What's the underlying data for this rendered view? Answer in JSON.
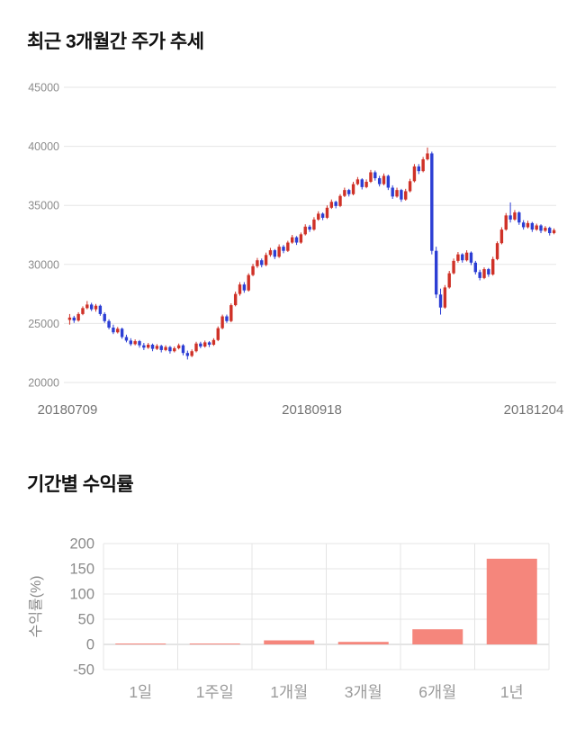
{
  "chart_data": [
    {
      "type": "candlestick",
      "title": "최근 3개월간 주가 추세",
      "x_labels": [
        "20180709",
        "20180918",
        "20181204"
      ],
      "ylim": [
        20000,
        45000
      ],
      "y_ticks": [
        20000,
        25000,
        30000,
        35000,
        40000,
        45000
      ],
      "grid": true,
      "up_color": "#cf3127",
      "down_color": "#2c3ed4",
      "grid_color": "#e6e6e6",
      "y_axis_text_color": "#8c8c8c",
      "x_axis_text_color": "#737373",
      "candles": [
        [
          25300,
          25800,
          24900,
          25500
        ],
        [
          25500,
          25650,
          25050,
          25250
        ],
        [
          25250,
          25950,
          25150,
          25800
        ],
        [
          25800,
          26450,
          25700,
          26300
        ],
        [
          26300,
          26900,
          26200,
          26600
        ],
        [
          26600,
          26750,
          26050,
          26200
        ],
        [
          26200,
          26650,
          26000,
          26500
        ],
        [
          26500,
          26600,
          25650,
          25800
        ],
        [
          25800,
          25950,
          25050,
          25200
        ],
        [
          25200,
          25350,
          24500,
          24650
        ],
        [
          24650,
          24900,
          24100,
          24250
        ],
        [
          24250,
          24700,
          24150,
          24550
        ],
        [
          24550,
          24650,
          23700,
          23850
        ],
        [
          23850,
          24050,
          23400,
          23550
        ],
        [
          23550,
          23750,
          23100,
          23250
        ],
        [
          23250,
          23650,
          23150,
          23500
        ],
        [
          23500,
          23600,
          22950,
          23150
        ],
        [
          23150,
          23350,
          22750,
          22950
        ],
        [
          22950,
          23350,
          22850,
          23200
        ],
        [
          23200,
          23300,
          22650,
          22850
        ],
        [
          22850,
          23250,
          22750,
          23100
        ],
        [
          23100,
          23200,
          22550,
          22750
        ],
        [
          22750,
          23150,
          22650,
          23000
        ],
        [
          23000,
          23100,
          22450,
          22650
        ],
        [
          22650,
          23050,
          22550,
          22900
        ],
        [
          22900,
          23300,
          22800,
          23150
        ],
        [
          23150,
          23250,
          22300,
          22500
        ],
        [
          22500,
          22700,
          21950,
          22250
        ],
        [
          22250,
          22800,
          22150,
          22650
        ],
        [
          22650,
          23450,
          22550,
          23300
        ],
        [
          23300,
          23450,
          22900,
          23050
        ],
        [
          23050,
          23550,
          22950,
          23400
        ],
        [
          23400,
          23500,
          23000,
          23200
        ],
        [
          23200,
          23750,
          23100,
          23600
        ],
        [
          23600,
          24750,
          23500,
          24600
        ],
        [
          24600,
          25750,
          24500,
          25600
        ],
        [
          25600,
          25750,
          25050,
          25200
        ],
        [
          25200,
          26700,
          25100,
          26550
        ],
        [
          26550,
          27700,
          26450,
          27500
        ],
        [
          27500,
          28500,
          27350,
          28300
        ],
        [
          28300,
          28500,
          27600,
          27800
        ],
        [
          27800,
          29250,
          27700,
          29100
        ],
        [
          29100,
          30050,
          29000,
          29850
        ],
        [
          29850,
          30550,
          29700,
          30350
        ],
        [
          30350,
          30500,
          29750,
          29950
        ],
        [
          29950,
          31000,
          29850,
          30800
        ],
        [
          30800,
          31400,
          30650,
          31200
        ],
        [
          31200,
          31300,
          30450,
          30650
        ],
        [
          30650,
          31700,
          30550,
          31500
        ],
        [
          31500,
          31650,
          30950,
          31150
        ],
        [
          31150,
          32000,
          31050,
          31850
        ],
        [
          31850,
          32500,
          31750,
          32300
        ],
        [
          32300,
          32400,
          31650,
          31850
        ],
        [
          31850,
          32700,
          31750,
          32550
        ],
        [
          32550,
          33400,
          32450,
          33200
        ],
        [
          33200,
          33350,
          32750,
          32950
        ],
        [
          32950,
          34000,
          32850,
          33800
        ],
        [
          33800,
          34500,
          33700,
          34300
        ],
        [
          34300,
          34400,
          33750,
          33950
        ],
        [
          33950,
          35000,
          33850,
          34800
        ],
        [
          34800,
          35500,
          34700,
          35300
        ],
        [
          35300,
          35400,
          34750,
          34950
        ],
        [
          34950,
          35950,
          34850,
          35800
        ],
        [
          35800,
          36500,
          35700,
          36300
        ],
        [
          36300,
          36400,
          35750,
          35950
        ],
        [
          35950,
          37000,
          35850,
          36800
        ],
        [
          36800,
          37400,
          36700,
          37200
        ],
        [
          37200,
          37300,
          36350,
          36550
        ],
        [
          36550,
          37200,
          36450,
          37000
        ],
        [
          37000,
          38000,
          36900,
          37800
        ],
        [
          37800,
          37950,
          37100,
          37300
        ],
        [
          37300,
          37500,
          36600,
          36800
        ],
        [
          36800,
          37700,
          36700,
          37500
        ],
        [
          37500,
          37600,
          36300,
          36500
        ],
        [
          36500,
          36700,
          35550,
          35750
        ],
        [
          35750,
          36500,
          35650,
          36300
        ],
        [
          36300,
          36400,
          35300,
          35500
        ],
        [
          35500,
          36400,
          35400,
          36200
        ],
        [
          36200,
          37250,
          36100,
          37050
        ],
        [
          37050,
          38500,
          36950,
          38300
        ],
        [
          38300,
          38500,
          37650,
          37900
        ],
        [
          37900,
          39100,
          37800,
          38900
        ],
        [
          38900,
          39900,
          38800,
          39400
        ],
        [
          39400,
          39550,
          30850,
          31150
        ],
        [
          31150,
          31500,
          27150,
          27450
        ],
        [
          27450,
          27950,
          25750,
          26350
        ],
        [
          26350,
          28250,
          26250,
          28050
        ],
        [
          28050,
          29450,
          27950,
          29250
        ],
        [
          29250,
          30500,
          29150,
          30300
        ],
        [
          30300,
          31050,
          30150,
          30850
        ],
        [
          30850,
          30950,
          30150,
          30350
        ],
        [
          30350,
          31200,
          30250,
          31000
        ],
        [
          31000,
          31100,
          29950,
          30150
        ],
        [
          30150,
          30300,
          29150,
          29350
        ],
        [
          29350,
          29550,
          28650,
          28850
        ],
        [
          28850,
          29750,
          28750,
          29600
        ],
        [
          29600,
          29700,
          28950,
          29150
        ],
        [
          29150,
          30650,
          29050,
          30450
        ],
        [
          30450,
          31950,
          30350,
          31800
        ],
        [
          31800,
          33150,
          31700,
          32950
        ],
        [
          32950,
          34350,
          32850,
          34150
        ],
        [
          34150,
          35250,
          33550,
          33800
        ],
        [
          33800,
          34600,
          33700,
          34400
        ],
        [
          34400,
          34500,
          33350,
          33550
        ],
        [
          33550,
          33750,
          32950,
          33150
        ],
        [
          33150,
          33700,
          33050,
          33500
        ],
        [
          33500,
          33600,
          32750,
          32950
        ],
        [
          32950,
          33450,
          32850,
          33300
        ],
        [
          33300,
          33400,
          32650,
          32850
        ],
        [
          32850,
          33250,
          32750,
          33100
        ],
        [
          33100,
          33200,
          32450,
          32650
        ],
        [
          32650,
          33050,
          32550,
          32900
        ]
      ]
    },
    {
      "type": "bar",
      "title": "기간별 수익률",
      "categories": [
        "1일",
        "1주일",
        "1개월",
        "3개월",
        "6개월",
        "1년"
      ],
      "values": [
        0,
        0,
        8,
        5,
        30,
        170
      ],
      "xlabel": "",
      "ylabel": "수익률(%)",
      "ylim": [
        -50,
        200
      ],
      "y_ticks": [
        -50,
        0,
        50,
        100,
        150,
        200
      ],
      "grid": true,
      "bar_color": "#f5867c",
      "grid_color": "#e4e4e4",
      "zero_line_color": "#c8c8c8",
      "axis_text_color": "#8a8a8a",
      "category_text_color": "#9a9a9a"
    }
  ]
}
